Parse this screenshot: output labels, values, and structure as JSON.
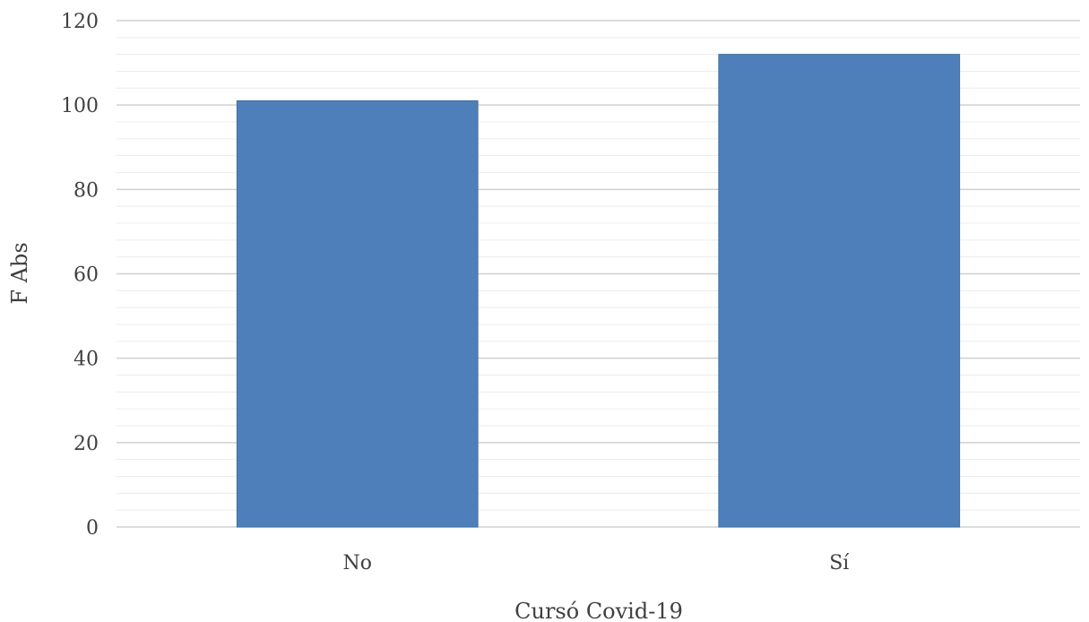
{
  "chart_data": {
    "type": "bar",
    "categories": [
      "No",
      "Sí"
    ],
    "series": [
      {
        "values": [
          101,
          112
        ],
        "color": "#4e7fbb"
      }
    ],
    "xlabel": "Cursó Covid-19",
    "ylabel": "F Abs",
    "ylim": [
      0,
      120
    ],
    "y_ticks": [
      0,
      20,
      40,
      60,
      80,
      100,
      120
    ],
    "grid": true,
    "legend": "none"
  }
}
